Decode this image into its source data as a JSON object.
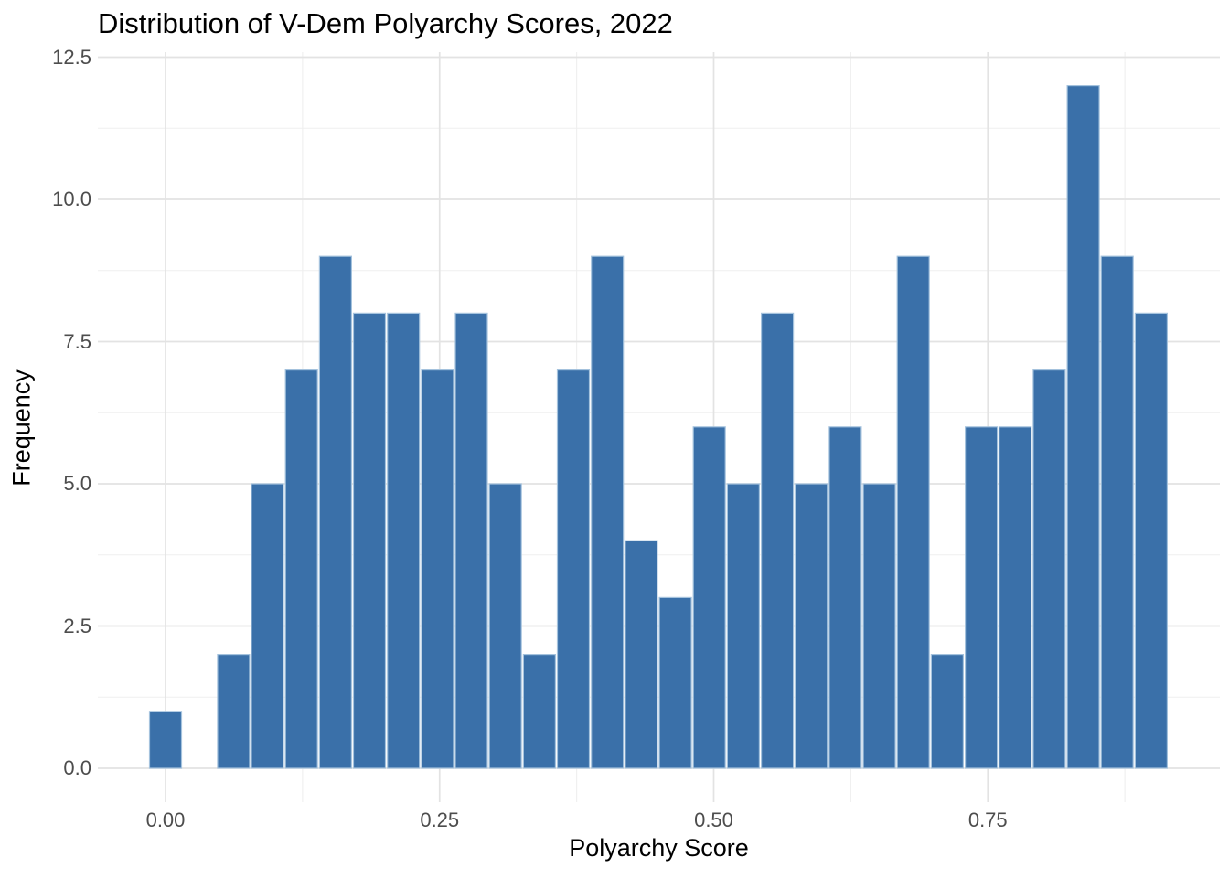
{
  "title": "Distribution of V-Dem Polyarchy Scores, 2022",
  "x_axis": {
    "label": "Polyarchy Score",
    "tick_labels": [
      "0.00",
      "0.25",
      "0.50",
      "0.75"
    ],
    "tick_values": [
      0,
      0.25,
      0.5,
      0.75
    ],
    "minor_tick_values": [
      0.125,
      0.375,
      0.625,
      0.875
    ]
  },
  "y_axis": {
    "label": "Frequency",
    "tick_labels": [
      "0.0",
      "2.5",
      "5.0",
      "7.5",
      "10.0",
      "12.5"
    ],
    "tick_values": [
      0,
      2.5,
      5,
      7.5,
      10,
      12.5
    ],
    "minor_tick_values": [
      1.25,
      3.75,
      6.25,
      8.75,
      11.25
    ]
  },
  "colors": {
    "bar_fill": "#3a70a9",
    "bar_border": "#a4c2dd",
    "grid_major": "#e3e3e3",
    "grid_minor": "#efefef",
    "tick_label": "#4d4d4d",
    "title_text": "#000000",
    "background": "#ffffff"
  },
  "chart_data": {
    "type": "bar",
    "subtype": "histogram",
    "title": "Distribution of V-Dem Polyarchy Scores, 2022",
    "xlabel": "Polyarchy Score",
    "ylabel": "Frequency",
    "bin_width": 0.031,
    "bin_centers": [
      0.0,
      0.031,
      0.062,
      0.093,
      0.124,
      0.155,
      0.186,
      0.217,
      0.248,
      0.279,
      0.31,
      0.341,
      0.372,
      0.403,
      0.434,
      0.465,
      0.496,
      0.527,
      0.558,
      0.589,
      0.62,
      0.651,
      0.682,
      0.713,
      0.744,
      0.775,
      0.806,
      0.837,
      0.868,
      0.899
    ],
    "counts": [
      1,
      0,
      2,
      5,
      7,
      9,
      8,
      8,
      7,
      8,
      5,
      2,
      7,
      9,
      4,
      3,
      6,
      5,
      8,
      5,
      6,
      5,
      9,
      2,
      6,
      6,
      7,
      12,
      9,
      8
    ],
    "total_observations": 179,
    "xlim": [
      -0.062,
      0.961
    ],
    "ylim": [
      -0.6,
      12.6
    ],
    "grid": true,
    "legend": false
  }
}
